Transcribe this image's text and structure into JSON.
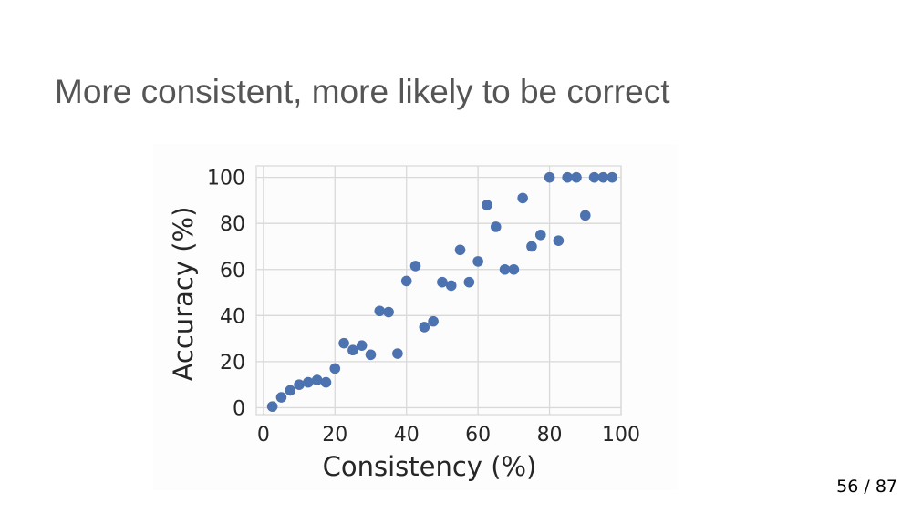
{
  "slide": {
    "title": "More consistent, more likely to be correct",
    "counter": "56 / 87"
  },
  "chart_data": {
    "type": "scatter",
    "title": "",
    "xlabel": "Consistency (%)",
    "ylabel": "Accuracy (%)",
    "xlim": [
      -2,
      100
    ],
    "ylim": [
      -3,
      105
    ],
    "xticks": [
      0,
      20,
      40,
      60,
      80,
      100
    ],
    "yticks": [
      0,
      20,
      40,
      60,
      80,
      100
    ],
    "grid": true,
    "marker_color": "#4c72b0",
    "grid_color": "#d9d9d9",
    "axes_facecolor": "#fcfcfc",
    "series": [
      {
        "points": [
          [
            2.5,
            0.5
          ],
          [
            5,
            4.5
          ],
          [
            7.5,
            7.5
          ],
          [
            10,
            10
          ],
          [
            12.5,
            11
          ],
          [
            15,
            12
          ],
          [
            17.5,
            11
          ],
          [
            20,
            17
          ],
          [
            22.5,
            28
          ],
          [
            25,
            25
          ],
          [
            27.5,
            27
          ],
          [
            30,
            23
          ],
          [
            32.5,
            42
          ],
          [
            35,
            41.5
          ],
          [
            37.5,
            23.5
          ],
          [
            40,
            55
          ],
          [
            42.5,
            61.5
          ],
          [
            45,
            35
          ],
          [
            47.5,
            37.5
          ],
          [
            50,
            54.5
          ],
          [
            52.5,
            53
          ],
          [
            55,
            68.5
          ],
          [
            57.5,
            54.5
          ],
          [
            60,
            63.5
          ],
          [
            62.5,
            88
          ],
          [
            65,
            78.5
          ],
          [
            67.5,
            60
          ],
          [
            70,
            60
          ],
          [
            72.5,
            91
          ],
          [
            75,
            70
          ],
          [
            77.5,
            75
          ],
          [
            80,
            100
          ],
          [
            82.5,
            72.5
          ],
          [
            85,
            100
          ],
          [
            87.5,
            100
          ],
          [
            90,
            83.5
          ],
          [
            92.5,
            100
          ],
          [
            95,
            100
          ],
          [
            97.5,
            100
          ]
        ]
      }
    ]
  }
}
